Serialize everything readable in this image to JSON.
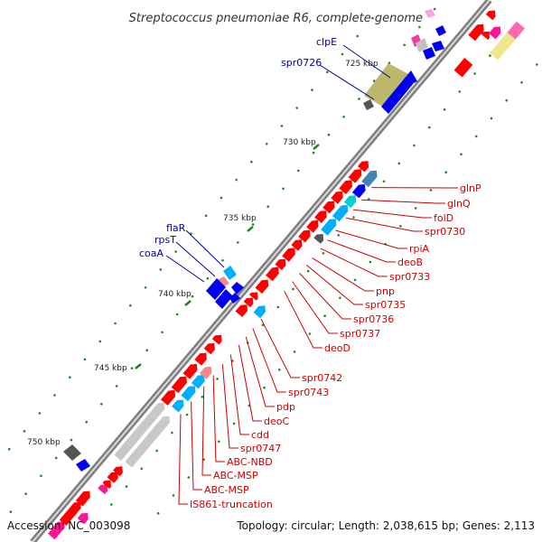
{
  "title": "Streptococcus pneumoniae R6, complete genome",
  "footer": {
    "accession": "Accession: NC_003098",
    "topology": "Topology: circular; Length: 2,038,615 bp; Genes: 2,113"
  },
  "colors": {
    "backbone": "#7f7f7f",
    "label_red": "#cc0000",
    "label_blue": "#0000aa",
    "tick_green": "#1a8a1a"
  },
  "kbp_labels": [
    "725 kbp",
    "730 kbp",
    "735 kbp",
    "740 kbp",
    "745 kbp",
    "750 kbp"
  ],
  "left_labels": [
    "clpE",
    "spr0726",
    "flaR",
    "rpsT",
    "coaA"
  ],
  "right_labels": [
    "glnP",
    "glnQ",
    "folD",
    "spr0730",
    "rpiA",
    "deoB",
    "spr0733",
    "pnp",
    "spr0735",
    "spr0736",
    "spr0737",
    "deoD",
    "spr0742",
    "spr0743",
    "pdp",
    "deoC",
    "cdd",
    "spr0747",
    "ABC-NBD",
    "ABC-MSP",
    "ABC-MSP",
    "IS861-truncation"
  ]
}
